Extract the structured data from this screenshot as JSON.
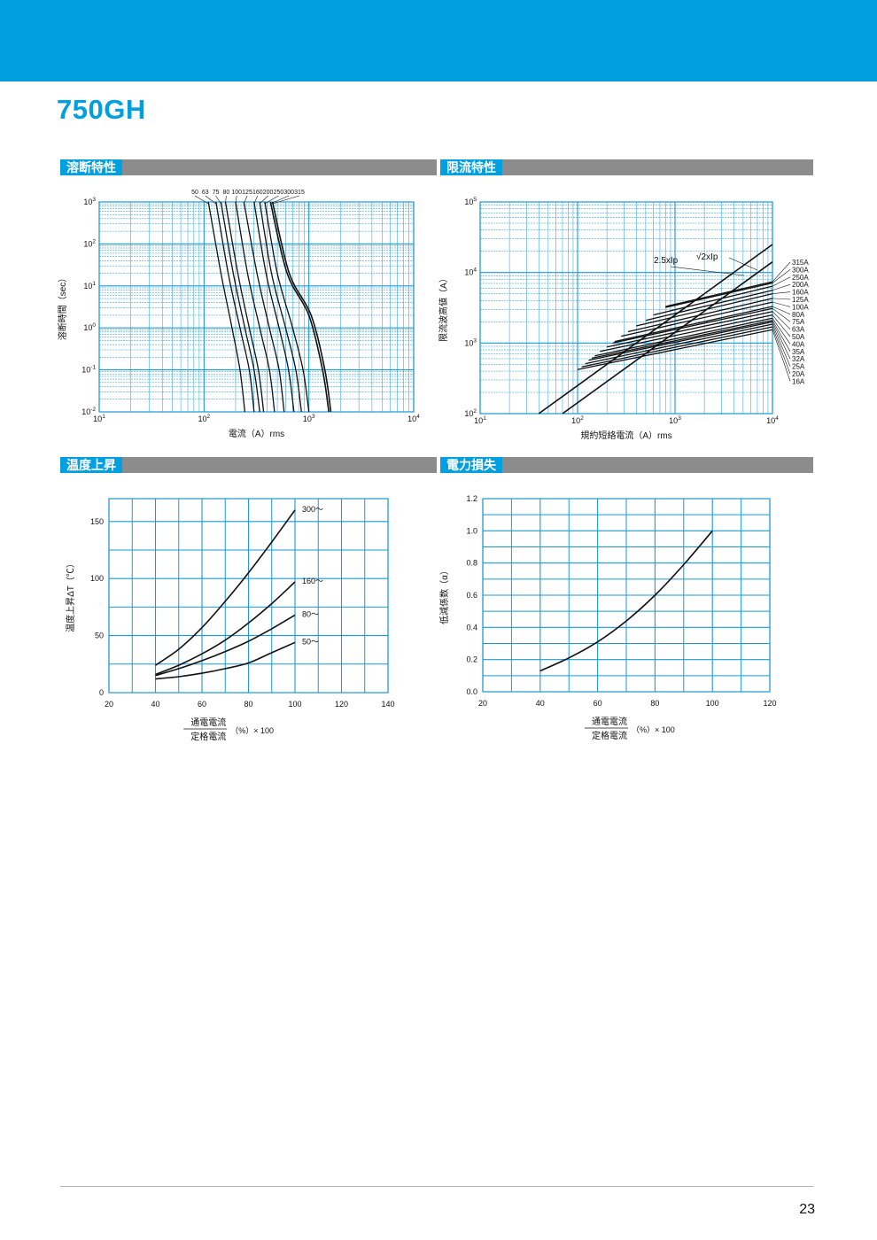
{
  "header": {
    "title": "750GH",
    "page_number": "23"
  },
  "colors": {
    "accent": "#009fe0",
    "grid": "#1a9ad6",
    "curve": "#111111",
    "section_bar": "#8c8c8c"
  },
  "sections": {
    "melting": "溶断特性",
    "limiting": "限流特性",
    "temperature": "温度上昇",
    "power": "電力損失"
  },
  "chart_data": [
    {
      "id": "melting",
      "type": "line",
      "x_scale": "log",
      "y_scale": "log",
      "xlim": [
        10,
        10000
      ],
      "ylim": [
        0.01,
        1000
      ],
      "x_ticks": [
        "10¹",
        "10²",
        "10³",
        "10⁴"
      ],
      "y_ticks": [
        "10³",
        "10²",
        "10¹",
        "10⁰",
        "10⁻¹",
        "10⁻²"
      ],
      "xlabel": "電流（A）rms",
      "ylabel": "溶断時間（sec）",
      "curve_labels": [
        "50",
        "63",
        "75",
        "80",
        "100",
        "125",
        "160",
        "200",
        "250",
        "300",
        "315"
      ],
      "series": [
        {
          "name": "50",
          "points": [
            [
              110,
              1000
            ],
            [
              145,
              20
            ],
            [
              185,
              1
            ],
            [
              220,
              0.1
            ],
            [
              245,
              0.01
            ]
          ]
        },
        {
          "name": "63",
          "points": [
            [
              130,
              1000
            ],
            [
              170,
              20
            ],
            [
              220,
              1
            ],
            [
              270,
              0.1
            ],
            [
              300,
              0.01
            ]
          ]
        },
        {
          "name": "75",
          "points": [
            [
              145,
              1000
            ],
            [
              190,
              20
            ],
            [
              245,
              1
            ],
            [
              300,
              0.1
            ],
            [
              340,
              0.01
            ]
          ]
        },
        {
          "name": "80",
          "points": [
            [
              160,
              1000
            ],
            [
              210,
              20
            ],
            [
              270,
              1
            ],
            [
              330,
              0.1
            ],
            [
              370,
              0.01
            ]
          ]
        },
        {
          "name": "100",
          "points": [
            [
              200,
              1000
            ],
            [
              260,
              20
            ],
            [
              340,
              1
            ],
            [
              420,
              0.1
            ],
            [
              470,
              0.01
            ]
          ]
        },
        {
          "name": "125",
          "points": [
            [
              240,
              1000
            ],
            [
              320,
              20
            ],
            [
              420,
              1
            ],
            [
              520,
              0.1
            ],
            [
              580,
              0.01
            ]
          ]
        },
        {
          "name": "160",
          "points": [
            [
              300,
              1000
            ],
            [
              390,
              20
            ],
            [
              520,
              1
            ],
            [
              640,
              0.1
            ],
            [
              720,
              0.01
            ]
          ]
        },
        {
          "name": "200",
          "points": [
            [
              340,
              1000
            ],
            [
              440,
              20
            ],
            [
              600,
              1
            ],
            [
              750,
              0.1
            ],
            [
              850,
              0.01
            ]
          ]
        },
        {
          "name": "250",
          "points": [
            [
              380,
              1000
            ],
            [
              500,
              20
            ],
            [
              700,
              1
            ],
            [
              880,
              0.1
            ],
            [
              1000,
              0.01
            ]
          ]
        },
        {
          "name": "300",
          "points": [
            [
              430,
              1000
            ],
            [
              620,
              20
            ],
            [
              1000,
              2
            ],
            [
              1350,
              0.1
            ],
            [
              1550,
              0.01
            ]
          ]
        },
        {
          "name": "315",
          "points": [
            [
              450,
              1000
            ],
            [
              650,
              20
            ],
            [
              1050,
              2
            ],
            [
              1420,
              0.1
            ],
            [
              1620,
              0.01
            ]
          ]
        }
      ]
    },
    {
      "id": "limiting",
      "type": "line",
      "x_scale": "log",
      "y_scale": "log",
      "xlim": [
        10,
        10000
      ],
      "ylim": [
        100,
        100000
      ],
      "x_ticks": [
        "10¹",
        "10²",
        "10³",
        "10⁴"
      ],
      "y_ticks": [
        "10⁵",
        "10⁴",
        "10³",
        "10²"
      ],
      "xlabel": "規約短絡電流（A）rms",
      "ylabel": "限流波高値（A）",
      "annotations": [
        "2.5xIp",
        "√2xIp"
      ],
      "rating_labels": [
        "315A",
        "300A",
        "250A",
        "200A",
        "160A",
        "125A",
        "100A",
        "80A",
        "75A",
        "63A",
        "50A",
        "40A",
        "35A",
        "32A",
        "25A",
        "20A",
        "16A"
      ],
      "reference_lines": [
        {
          "name": "2.5xIp",
          "points": [
            [
              40,
              100
            ],
            [
              10000,
              25000
            ]
          ]
        },
        {
          "name": "√2xIp",
          "points": [
            [
              70,
              100
            ],
            [
              10000,
              14140
            ]
          ]
        }
      ],
      "series": [
        {
          "name": "315A",
          "points": [
            [
              800,
              3300
            ],
            [
              10000,
              7400
            ]
          ]
        },
        {
          "name": "300A",
          "points": [
            [
              800,
              3200
            ],
            [
              10000,
              7100
            ]
          ]
        },
        {
          "name": "250A",
          "points": [
            [
              600,
              2500
            ],
            [
              10000,
              6400
            ]
          ]
        },
        {
          "name": "200A",
          "points": [
            [
              500,
              2100
            ],
            [
              10000,
              5600
            ]
          ]
        },
        {
          "name": "160A",
          "points": [
            [
              400,
              1750
            ],
            [
              10000,
              5000
            ]
          ]
        },
        {
          "name": "125A",
          "points": [
            [
              330,
              1450
            ],
            [
              10000,
              4300
            ]
          ]
        },
        {
          "name": "100A",
          "points": [
            [
              280,
              1250
            ],
            [
              10000,
              3800
            ]
          ]
        },
        {
          "name": "80A",
          "points": [
            [
              240,
              1050
            ],
            [
              10000,
              3300
            ]
          ]
        },
        {
          "name": "75A",
          "points": [
            [
              230,
              1000
            ],
            [
              10000,
              3100
            ]
          ]
        },
        {
          "name": "63A",
          "points": [
            [
              200,
              880
            ],
            [
              10000,
              2800
            ]
          ]
        },
        {
          "name": "50A",
          "points": [
            [
              170,
              760
            ],
            [
              10000,
              2500
            ]
          ]
        },
        {
          "name": "40A",
          "points": [
            [
              150,
              660
            ],
            [
              10000,
              2250
            ]
          ]
        },
        {
          "name": "35A",
          "points": [
            [
              140,
              610
            ],
            [
              10000,
              2100
            ]
          ]
        },
        {
          "name": "32A",
          "points": [
            [
              130,
              570
            ],
            [
              10000,
              2000
            ]
          ]
        },
        {
          "name": "25A",
          "points": [
            [
              120,
              510
            ],
            [
              10000,
              1850
            ]
          ]
        },
        {
          "name": "20A",
          "points": [
            [
              110,
              460
            ],
            [
              10000,
              1700
            ]
          ]
        },
        {
          "name": "16A",
          "points": [
            [
              100,
              420
            ],
            [
              10000,
              1550
            ]
          ]
        }
      ]
    },
    {
      "id": "temperature",
      "type": "line",
      "xlim": [
        20,
        140
      ],
      "ylim": [
        0,
        170
      ],
      "x_ticks": [
        20,
        40,
        60,
        80,
        100,
        120,
        140
      ],
      "y_ticks": [
        0,
        50,
        100,
        150
      ],
      "ylabel": "温度上昇ΔT（℃）",
      "xlabel_numerator": "通電電流",
      "xlabel_denominator": "定格電流",
      "xlabel_suffix": "（%）× 100",
      "series": [
        {
          "name": "300〜",
          "points": [
            [
              40,
              24
            ],
            [
              50,
              38
            ],
            [
              60,
              57
            ],
            [
              70,
              80
            ],
            [
              80,
              105
            ],
            [
              90,
              132
            ],
            [
              100,
              160
            ]
          ]
        },
        {
          "name": "160〜",
          "points": [
            [
              40,
              16
            ],
            [
              50,
              24
            ],
            [
              60,
              34
            ],
            [
              70,
              46
            ],
            [
              80,
              61
            ],
            [
              90,
              78
            ],
            [
              100,
              97
            ]
          ]
        },
        {
          "name": "80〜",
          "points": [
            [
              40,
              15
            ],
            [
              50,
              21
            ],
            [
              60,
              28
            ],
            [
              70,
              36
            ],
            [
              80,
              45
            ],
            [
              90,
              56
            ],
            [
              100,
              68
            ]
          ]
        },
        {
          "name": "50〜",
          "points": [
            [
              40,
              12
            ],
            [
              50,
              14
            ],
            [
              60,
              17
            ],
            [
              70,
              21
            ],
            [
              80,
              26
            ],
            [
              90,
              35
            ],
            [
              100,
              44
            ]
          ]
        }
      ]
    },
    {
      "id": "power",
      "type": "line",
      "xlim": [
        20,
        120
      ],
      "ylim": [
        0,
        1.2
      ],
      "x_ticks": [
        20,
        40,
        60,
        80,
        100,
        120
      ],
      "y_ticks": [
        "0.0",
        "0.2",
        "0.4",
        "0.6",
        "0.8",
        "1.0",
        "1.2"
      ],
      "ylabel": "低減係数（α）",
      "xlabel_numerator": "通電電流",
      "xlabel_denominator": "定格電流",
      "xlabel_suffix": "（%）× 100",
      "series": [
        {
          "name": "",
          "points": [
            [
              40,
              0.13
            ],
            [
              50,
              0.21
            ],
            [
              60,
              0.31
            ],
            [
              70,
              0.44
            ],
            [
              80,
              0.6
            ],
            [
              90,
              0.79
            ],
            [
              100,
              1.0
            ]
          ]
        }
      ]
    }
  ]
}
